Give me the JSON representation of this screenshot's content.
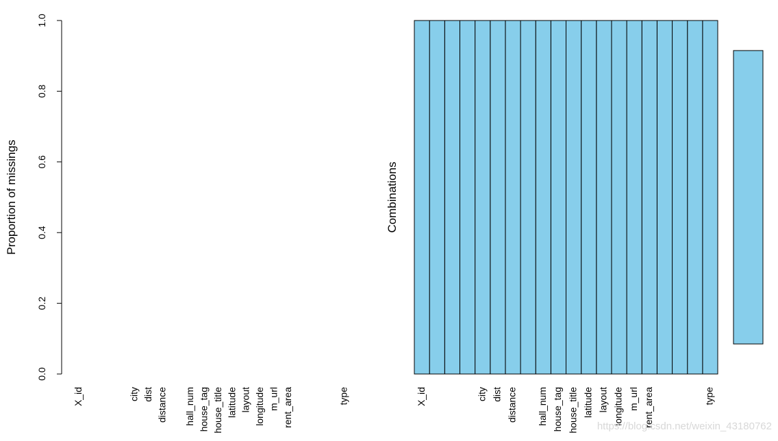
{
  "chart_data": [
    {
      "type": "bar",
      "ylabel": "Proportion of missings",
      "categories": [
        "X_id",
        null,
        null,
        null,
        "city",
        "dist",
        "distance",
        null,
        "hall_num",
        "house_tag",
        "house_title",
        "latitude",
        "layout",
        "longitude",
        "m_url",
        "rent_area",
        null,
        null,
        null,
        "type"
      ],
      "values": [
        0,
        0,
        0,
        0,
        0,
        0,
        0,
        0,
        0,
        0,
        0,
        0,
        0,
        0,
        0,
        0,
        0,
        0,
        0,
        0
      ],
      "color": "#87CEEB",
      "ylim": [
        0,
        1
      ],
      "yticks": [
        {
          "value": 0,
          "label": "0.0"
        },
        0.2,
        0.4,
        0.6,
        0.8,
        {
          "value": 1,
          "label": "1.0"
        }
      ]
    },
    {
      "type": "combinations",
      "ylabel": "Combinations",
      "categories": [
        "X_id",
        null,
        null,
        null,
        "city",
        "dist",
        "distance",
        null,
        "hall_num",
        "house_tag",
        "house_title",
        "latitude",
        "layout",
        "longitude",
        "m_url",
        "rent_area",
        null,
        null,
        null,
        "type"
      ],
      "combinations": [
        [
          0,
          0,
          0,
          0,
          0,
          0,
          0,
          0,
          0,
          0,
          0,
          0,
          0,
          0,
          0,
          0,
          0,
          0,
          0,
          0
        ]
      ],
      "frequencies": [
        1
      ],
      "color": "#87CEEB"
    }
  ],
  "watermark": "https://blog.csdn.net/weixin_43180762"
}
